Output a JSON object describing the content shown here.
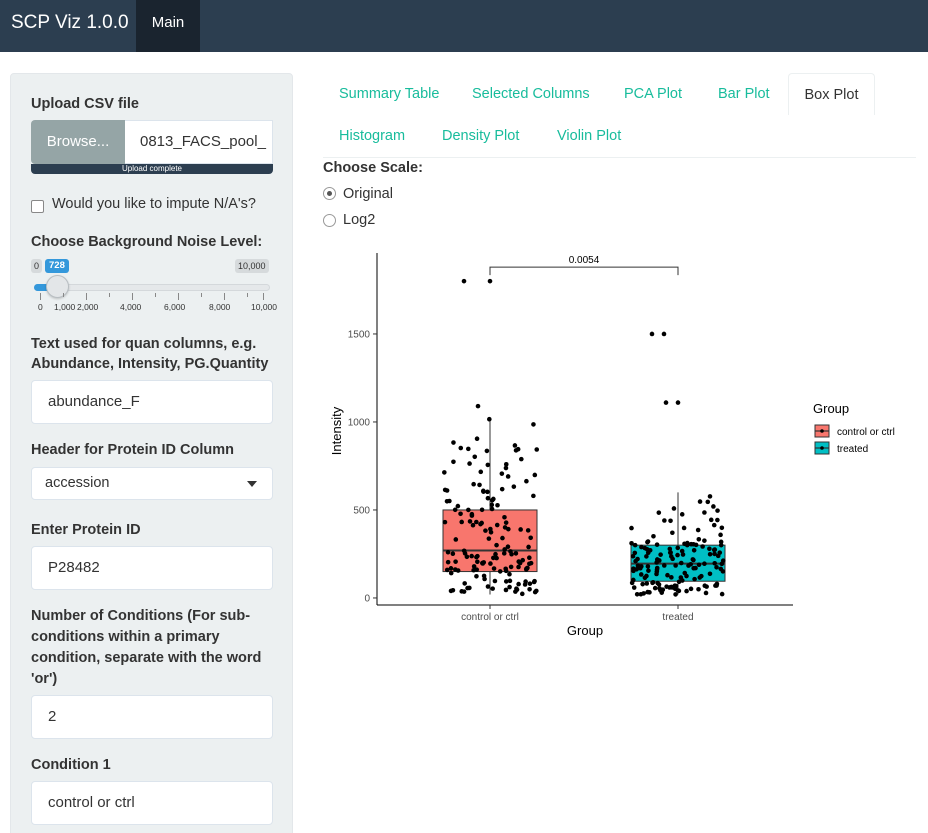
{
  "app": {
    "title": "SCP Viz 1.0.0",
    "main_tab": "Main"
  },
  "sidebar": {
    "upload": {
      "label": "Upload CSV file",
      "button": "Browse...",
      "file_name": "0813_FACS_pool_",
      "status": "Upload complete"
    },
    "impute": {
      "label": "Would you like to impute N/A's?",
      "checked": false
    },
    "noise": {
      "label": "Choose Background Noise Level:",
      "min": "0",
      "value": "728",
      "max": "10,000",
      "ticks": [
        "0",
        "1,000",
        "2,000",
        "4,000",
        "6,000",
        "8,000",
        "10,000"
      ],
      "value_fraction": 0.0728
    },
    "quan": {
      "label_line1": "Text used for quan columns, e.g.",
      "label_line2": "Abundance, Intensity, PG.Quantity",
      "value": "abundance_F"
    },
    "header": {
      "label": "Header for Protein ID Column",
      "value": "accession"
    },
    "protein": {
      "label": "Enter Protein ID",
      "value": "P28482"
    },
    "conditions": {
      "label_line1": "Number of Conditions (For sub-",
      "label_line2": "conditions within a primary",
      "label_line3": "condition, separate with the word",
      "label_line4": "'or')",
      "value": "2"
    },
    "condition1": {
      "label": "Condition 1",
      "value": "control or ctrl"
    }
  },
  "tabs": {
    "summary": "Summary Table",
    "selected": "Selected Columns",
    "pca": "PCA Plot",
    "bar": "Bar Plot",
    "box": "Box Plot",
    "histogram": "Histogram",
    "density": "Density Plot",
    "violin": "Violin Plot"
  },
  "scale": {
    "label": "Choose Scale:",
    "options": [
      "Original",
      "Log2"
    ],
    "selected": "Original"
  },
  "chart_data": {
    "type": "box",
    "xlabel": "Group",
    "ylabel": "Intensity",
    "categories": [
      "control or ctrl",
      "treated"
    ],
    "ylim": [
      -40,
      1960
    ],
    "yticks": [
      0,
      500,
      1000,
      1500
    ],
    "legend": {
      "title": "Group",
      "position": "right"
    },
    "significance": {
      "label": "0.0054",
      "between": [
        "control or ctrl",
        "treated"
      ]
    },
    "series": [
      {
        "name": "control or ctrl",
        "color": "#f8766d",
        "q1": 150,
        "median": 270,
        "q3": 500,
        "whisker_low": 20,
        "whisker_high": 1020,
        "outliers": [
          1090,
          1800,
          1800
        ]
      },
      {
        "name": "treated",
        "color": "#00bfc4",
        "q1": 95,
        "median": 195,
        "q3": 300,
        "whisker_low": 20,
        "whisker_high": 600,
        "outliers": [
          1110,
          1110,
          1500,
          1500
        ]
      }
    ]
  }
}
